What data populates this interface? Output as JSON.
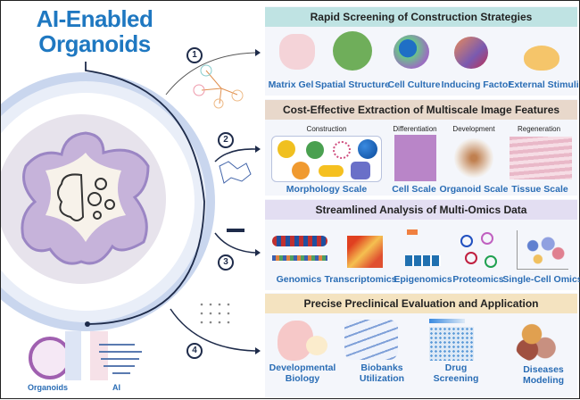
{
  "title": {
    "line1": "AI-Enabled",
    "line2": "Organoids"
  },
  "legend": {
    "organoids": "Organoids",
    "ai": "AI"
  },
  "steps": [
    "1",
    "2",
    "3",
    "4"
  ],
  "sections": [
    {
      "title": "Rapid Screening of Construction Strategies",
      "color": "#bfe3e3",
      "items": [
        "Matrix Gel",
        "Spatial Structure",
        "Cell Culture",
        "Inducing Factor",
        "External Stimuli"
      ]
    },
    {
      "title": "Cost-Effective Extraction of Multiscale Image Features",
      "color": "#e8d8cb",
      "sublabels": [
        "Construction",
        "Differentiation",
        "Development",
        "Regeneration"
      ],
      "items": [
        "Morphology Scale",
        "Cell Scale",
        "Organoid Scale",
        "Tissue Scale"
      ]
    },
    {
      "title": "Streamlined Analysis of Multi-Omics Data",
      "color": "#e3def2",
      "items": [
        "Genomics",
        "Transcriptomics",
        "Epigenomics",
        "Proteomics",
        "Single-Cell Omics"
      ]
    },
    {
      "title": "Precise Preclinical Evaluation and Application",
      "color": "#f4e3c0",
      "items": [
        [
          "Developmental",
          "Biology"
        ],
        [
          "Biobanks",
          "Utilization"
        ],
        [
          "Drug",
          "Screening"
        ],
        [
          "Diseases",
          "Modeling"
        ]
      ]
    }
  ]
}
